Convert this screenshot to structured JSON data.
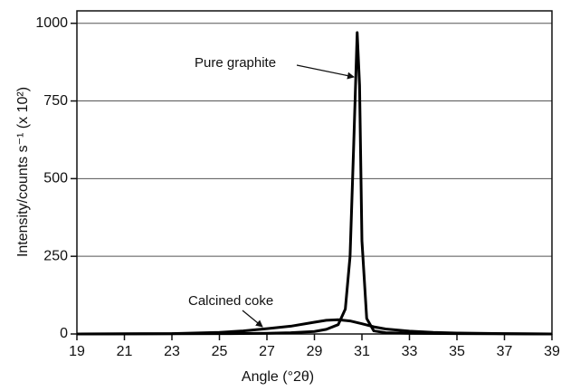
{
  "chart_data": {
    "type": "line",
    "xlabel": "Angle (°2θ)",
    "ylabel": "Intensity/counts s⁻¹ (x 10²)",
    "xlim": [
      19,
      39
    ],
    "xticks": [
      19,
      21,
      23,
      25,
      27,
      29,
      31,
      33,
      35,
      37,
      39
    ],
    "ylim": [
      0,
      1040
    ],
    "yticks": [
      0,
      250,
      500,
      750,
      1000
    ],
    "grid": true,
    "series": [
      {
        "name": "Pure graphite",
        "color": "#000000",
        "x": [
          19,
          25,
          27,
          28,
          29,
          29.5,
          30,
          30.3,
          30.5,
          30.65,
          30.8,
          30.9,
          31.0,
          31.2,
          31.5,
          32,
          33,
          35,
          39
        ],
        "values": [
          0,
          1,
          2,
          4,
          8,
          15,
          30,
          80,
          250,
          600,
          970,
          800,
          300,
          50,
          10,
          4,
          2,
          1,
          0
        ]
      },
      {
        "name": "Calcined coke",
        "color": "#000000",
        "x": [
          19,
          23,
          25,
          26,
          27,
          28,
          29,
          29.5,
          30,
          30.5,
          31,
          31.5,
          32,
          33,
          34,
          35,
          37,
          39
        ],
        "values": [
          0,
          1,
          5,
          10,
          17,
          25,
          38,
          44,
          46,
          42,
          33,
          23,
          16,
          9,
          5,
          3,
          1,
          0
        ]
      }
    ]
  }
}
